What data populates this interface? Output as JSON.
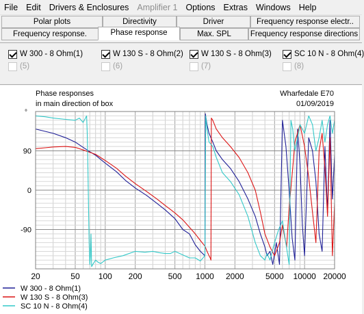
{
  "menubar": {
    "items": [
      {
        "label": "File",
        "disabled": false
      },
      {
        "label": "Edit",
        "disabled": false
      },
      {
        "label": "Drivers & Enclosures",
        "disabled": false
      },
      {
        "label": "Amplifier 1",
        "disabled": true
      },
      {
        "label": "Options",
        "disabled": false
      },
      {
        "label": "Extras",
        "disabled": false
      },
      {
        "label": "Windows",
        "disabled": false
      },
      {
        "label": "Help",
        "disabled": false
      }
    ]
  },
  "tabs": {
    "row1": [
      "Polar plots",
      "Directivity",
      "Driver",
      "Frequency response electr.."
    ],
    "row2": [
      "Frequency response.",
      "Phase response",
      "Max. SPL",
      "Frequency response directions"
    ],
    "active": "Phase response"
  },
  "series_selector": {
    "items": [
      {
        "label": "W 300 - 8 Ohm(1)",
        "checked": true,
        "enabled": true
      },
      {
        "label": "W 130 S - 8 Ohm(2)",
        "checked": true,
        "enabled": true
      },
      {
        "label": "W 130 S - 8 Ohm(3)",
        "checked": true,
        "enabled": true
      },
      {
        "label": "SC 10 N - 8 Ohm(4)",
        "checked": true,
        "enabled": true
      },
      {
        "label": "(5)",
        "checked": false,
        "enabled": false
      },
      {
        "label": "(6)",
        "checked": false,
        "enabled": false
      },
      {
        "label": "(7)",
        "checked": false,
        "enabled": false
      },
      {
        "label": "(8)",
        "checked": false,
        "enabled": false
      }
    ]
  },
  "chart_data": {
    "type": "line",
    "title": "Phase responses",
    "subtitle": "in main direction of box",
    "project": "Wharfedale E70",
    "date": "01/09/2019",
    "x_scale": "log",
    "xlim": [
      20,
      20000
    ],
    "ylim": [
      -180,
      180
    ],
    "x_ticks": [
      20,
      50,
      100,
      200,
      500,
      1000,
      2000,
      5000,
      10000,
      20000
    ],
    "x_tick_labels": [
      "20",
      "50",
      "100",
      "200",
      "500",
      "1000",
      "2000",
      "5000",
      "10000",
      "20000"
    ],
    "y_ticks": [
      -90,
      0,
      90
    ],
    "y_tick_labels": [
      "-90",
      "0",
      "90"
    ],
    "y_top_label": "°",
    "grid": true,
    "legend_position": "bottom-left",
    "series": [
      {
        "name": "W 300 - 8 Ohm(1)",
        "color": "#1e1e96",
        "style": "solid",
        "x": [
          20,
          30,
          40,
          50,
          60,
          70,
          80,
          100,
          130,
          160,
          200,
          260,
          330,
          400,
          500,
          600,
          700,
          800,
          900,
          1000,
          1010,
          1050,
          1100,
          1200,
          1300,
          1500,
          1800,
          2200,
          2700,
          3200,
          3600,
          4000,
          4200,
          4500,
          4800,
          5200,
          5600,
          6000,
          6500,
          7000,
          7500,
          8000,
          8500,
          9000,
          9500,
          10000,
          11000,
          12000,
          13000,
          14000,
          15000,
          16000,
          17000,
          18000,
          19000,
          20000
        ],
        "y": [
          140,
          130,
          120,
          110,
          98,
          88,
          80,
          62,
          42,
          22,
          5,
          -12,
          -30,
          -45,
          -65,
          -90,
          -100,
          -125,
          -140,
          -150,
          175,
          150,
          130,
          110,
          90,
          70,
          50,
          20,
          -20,
          -60,
          -100,
          -130,
          -150,
          -140,
          -170,
          -120,
          -170,
          160,
          100,
          0,
          -110,
          -160,
          140,
          60,
          -80,
          -150,
          120,
          90,
          20,
          -100,
          -140,
          100,
          -50,
          160,
          -20,
          80
        ]
      },
      {
        "name": "W 130 S - 8 Ohm(3)",
        "color": "#dc1414",
        "style": "solid",
        "x": [
          20,
          25,
          30,
          40,
          50,
          60,
          80,
          100,
          130,
          160,
          200,
          260,
          330,
          400,
          500,
          600,
          700,
          800,
          900,
          1000,
          1050,
          1100,
          1130,
          1150,
          1160,
          1200,
          1300,
          1500,
          1800,
          2200,
          2700,
          3200,
          3600,
          4000,
          4500,
          5000,
          5600,
          6000,
          6600,
          7000,
          7600,
          8000,
          9000,
          10000,
          11000,
          12000,
          13000,
          14000,
          15000,
          16000,
          17000,
          18000,
          19000,
          20000
        ],
        "y": [
          95,
          97,
          99,
          100,
          98,
          92,
          82,
          68,
          50,
          32,
          15,
          -3,
          -20,
          -35,
          -52,
          -68,
          -85,
          -100,
          -115,
          -128,
          -140,
          -150,
          -155,
          -160,
          165,
          160,
          140,
          120,
          100,
          75,
          40,
          0,
          -50,
          -100,
          -130,
          -150,
          -120,
          -80,
          -130,
          -40,
          50,
          110,
          150,
          100,
          30,
          -50,
          -120,
          90,
          130,
          50,
          -60,
          120,
          -150,
          -30
        ]
      },
      {
        "name": "SC 10 N - 8 Ohm(4)",
        "color": "#32c8c8",
        "style": "solid",
        "x": [
          20,
          25,
          30,
          40,
          50,
          55,
          60,
          65,
          66,
          67,
          68,
          69,
          70,
          71,
          72,
          73,
          75,
          80,
          85,
          90,
          100,
          120,
          150,
          200,
          250,
          300,
          350,
          400,
          450,
          500,
          600,
          700,
          800,
          900,
          1000,
          1020,
          1050,
          1100,
          1200,
          1300,
          1500,
          1800,
          2200,
          2700,
          3200,
          3600,
          4000,
          4200,
          4500,
          5000,
          5500,
          6000,
          7000,
          7300,
          7600,
          8000,
          8500,
          9000,
          10000,
          11000,
          12000,
          13000,
          14000,
          15000,
          16000,
          17000,
          18000,
          19000,
          20000
        ],
        "y": [
          170,
          168,
          165,
          162,
          160,
          165,
          155,
          170,
          130,
          50,
          -40,
          -120,
          -170,
          -150,
          -100,
          -175,
          -170,
          -160,
          -165,
          -168,
          -160,
          -155,
          -150,
          -140,
          -142,
          -140,
          -143,
          -145,
          -145,
          -140,
          -148,
          -155,
          -155,
          -162,
          -150,
          170,
          140,
          110,
          100,
          75,
          40,
          20,
          -10,
          -60,
          -120,
          -150,
          -160,
          -145,
          -160,
          -120,
          -90,
          -70,
          -170,
          160,
          140,
          90,
          120,
          150,
          130,
          170,
          150,
          90,
          120,
          160,
          110,
          150,
          170,
          130,
          160
        ]
      }
    ]
  },
  "legend": {
    "items": [
      {
        "label": "W 300 - 8 Ohm(1)",
        "color": "#1e1e96"
      },
      {
        "label": "W 130 S - 8 Ohm(3)",
        "color": "#dc1414"
      },
      {
        "label": "SC 10 N - 8 Ohm(4)",
        "color": "#32c8c8"
      }
    ]
  }
}
